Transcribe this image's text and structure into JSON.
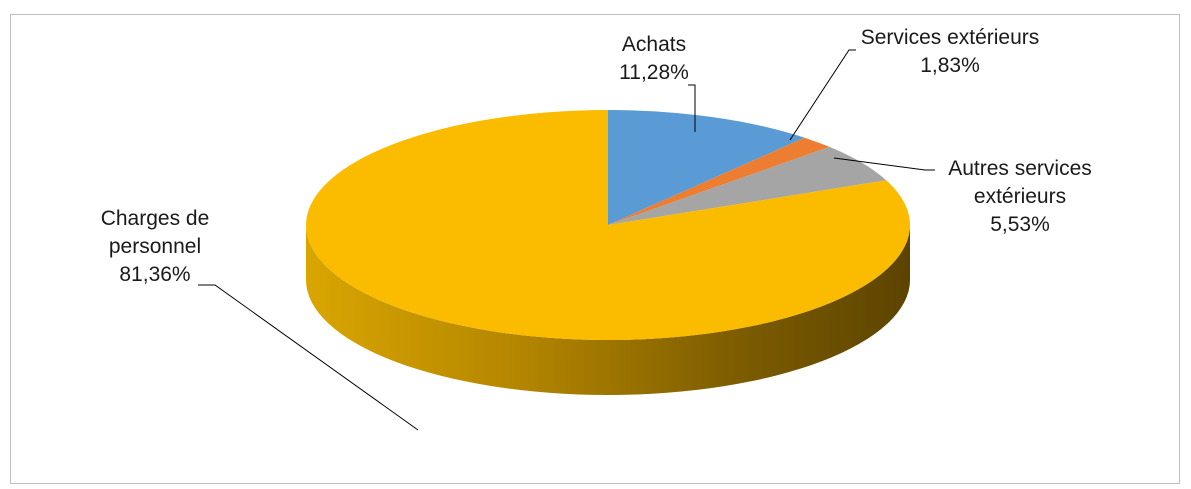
{
  "chart_data": {
    "type": "pie",
    "style": "3d-pie",
    "title": "",
    "legend": "none",
    "start_angle_deg": 90,
    "direction": "clockwise",
    "slices": [
      {
        "label_line1": "Achats",
        "label_line2": "",
        "percent_text": "11,28%",
        "value": 11.28,
        "color": "#5b9bd5"
      },
      {
        "label_line1": "Services extérieurs",
        "label_line2": "",
        "percent_text": "1,83%",
        "value": 1.83,
        "color": "#ed7d31"
      },
      {
        "label_line1": "Autres services",
        "label_line2": "extérieurs",
        "percent_text": "5,53%",
        "value": 5.53,
        "color": "#a5a5a5"
      },
      {
        "label_line1": "Charges de",
        "label_line2": "personnel",
        "percent_text": "81,36%",
        "value": 81.36,
        "color": "#fbbc00"
      }
    ]
  }
}
